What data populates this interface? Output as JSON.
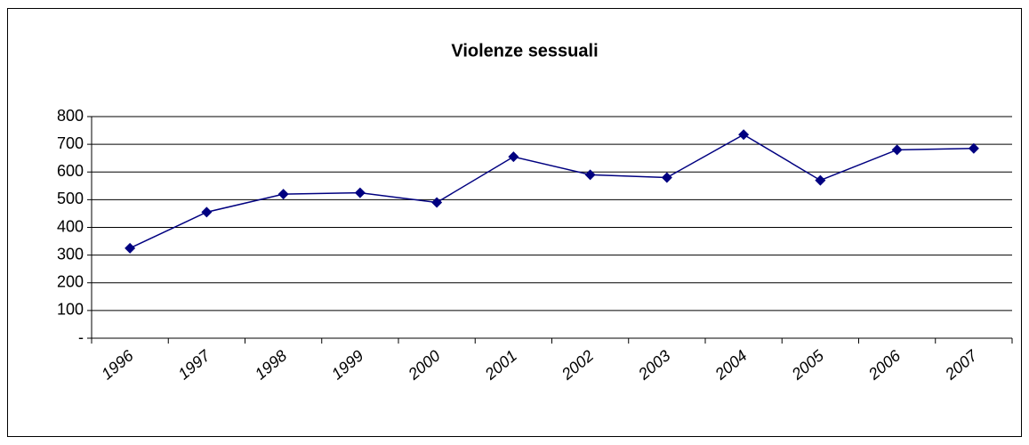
{
  "chart_data": {
    "type": "line",
    "title": "Violenze sessuali",
    "categories": [
      "1996",
      "1997",
      "1998",
      "1999",
      "2000",
      "2001",
      "2002",
      "2003",
      "2004",
      "2005",
      "2006",
      "2007"
    ],
    "series": [
      {
        "name": "Violenze sessuali",
        "color": "#000080",
        "values": [
          325,
          455,
          520,
          525,
          490,
          655,
          590,
          580,
          735,
          570,
          680,
          685
        ]
      }
    ],
    "ylim": [
      0,
      800
    ],
    "yticks": [
      {
        "value": 0,
        "label": "-"
      },
      100,
      200,
      300,
      400,
      500,
      600,
      700,
      800
    ],
    "grid": true
  }
}
